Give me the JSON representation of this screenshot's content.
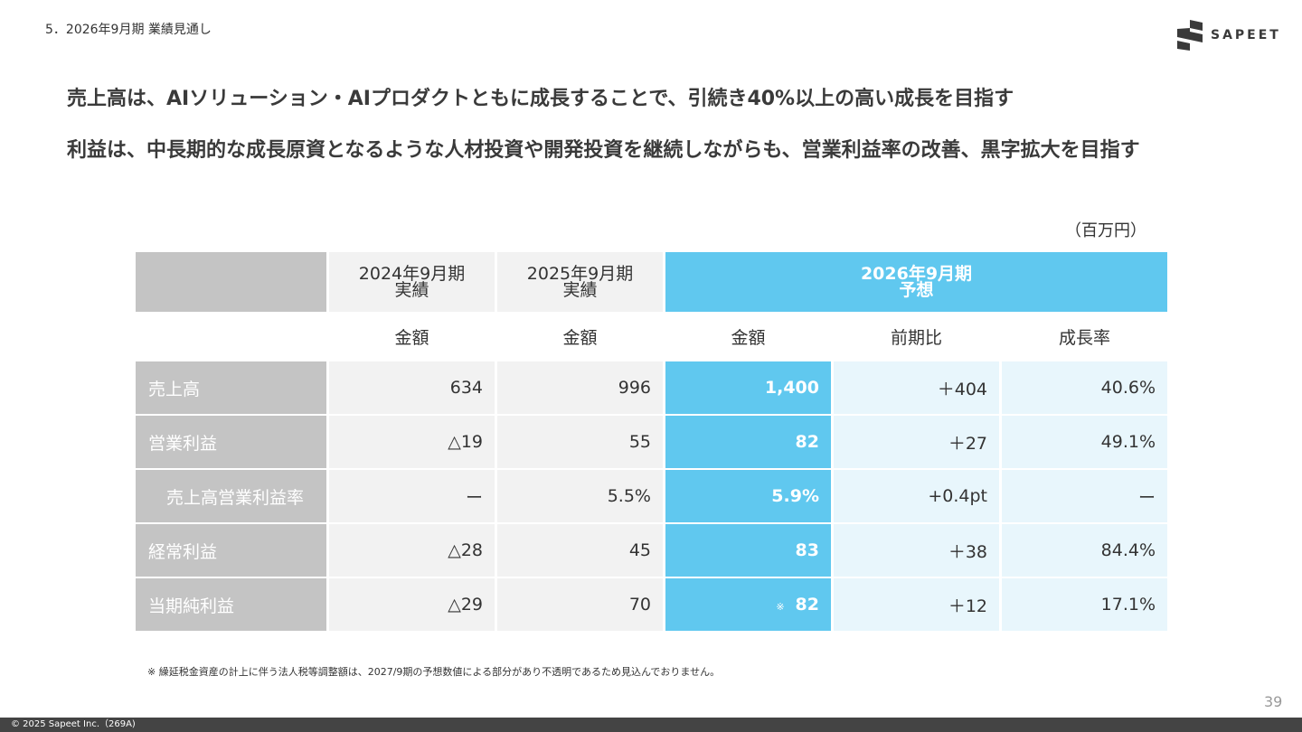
{
  "header": {
    "section_label": "5．2026年9月期 業績見通し",
    "logo_text": "SAPEET"
  },
  "headlines": {
    "line1": "売上高は、AIソリューション・AIプロダクトともに成長することで、引続き40%以上の高い成長を目指す",
    "line2": "利益は、中長期的な成長原資となるような人材投資や開発投資を継続しながらも、営業利益率の改善、黒字拡大を目指す"
  },
  "unit_label": "（百万円）",
  "table": {
    "columns": {
      "fy2024": {
        "period": "2024年9月期",
        "type": "実績",
        "sub": "金額"
      },
      "fy2025": {
        "period": "2025年9月期",
        "type": "実績",
        "sub": "金額"
      },
      "fy2026": {
        "period": "2026年9月期",
        "type": "予想",
        "sub_amount": "金額",
        "sub_change": "前期比",
        "sub_growth": "成長率"
      }
    },
    "rows": [
      {
        "label": "売上高",
        "fy2024": "634",
        "fy2025": "996",
        "fy2026": "1,400",
        "change": "＋404",
        "growth": "40.6%"
      },
      {
        "label": "営業利益",
        "fy2024": "△19",
        "fy2025": "55",
        "fy2026": "82",
        "change": "＋27",
        "growth": "49.1%"
      },
      {
        "label": "売上高営業利益率",
        "fy2024": "ー",
        "fy2025": "5.5%",
        "fy2026": "5.9%",
        "change": "+0.4pt",
        "growth": "ー"
      },
      {
        "label": "経常利益",
        "fy2024": "△28",
        "fy2025": "45",
        "fy2026": "83",
        "change": "＋38",
        "growth": "84.4%"
      },
      {
        "label": "当期純利益",
        "fy2024": "△29",
        "fy2025": "70",
        "fy2026_note": "※",
        "fy2026": "82",
        "change": "＋12",
        "growth": "17.1%"
      }
    ]
  },
  "footnote": "※ 繰延税金資産の計上に伴う法人税等調整額は、2027/9期の予想数値による部分があり不透明であるため見込んでおりません。",
  "page_number": "39",
  "copyright": "© 2025 Sapeet Inc.（269A)",
  "colors": {
    "forecast_blue": "#60c8ef",
    "forecast_light": "#e8f6fc",
    "label_gray": "#c4c4c4",
    "past_gray": "#f2f2f2",
    "footer_bar": "#444444"
  }
}
